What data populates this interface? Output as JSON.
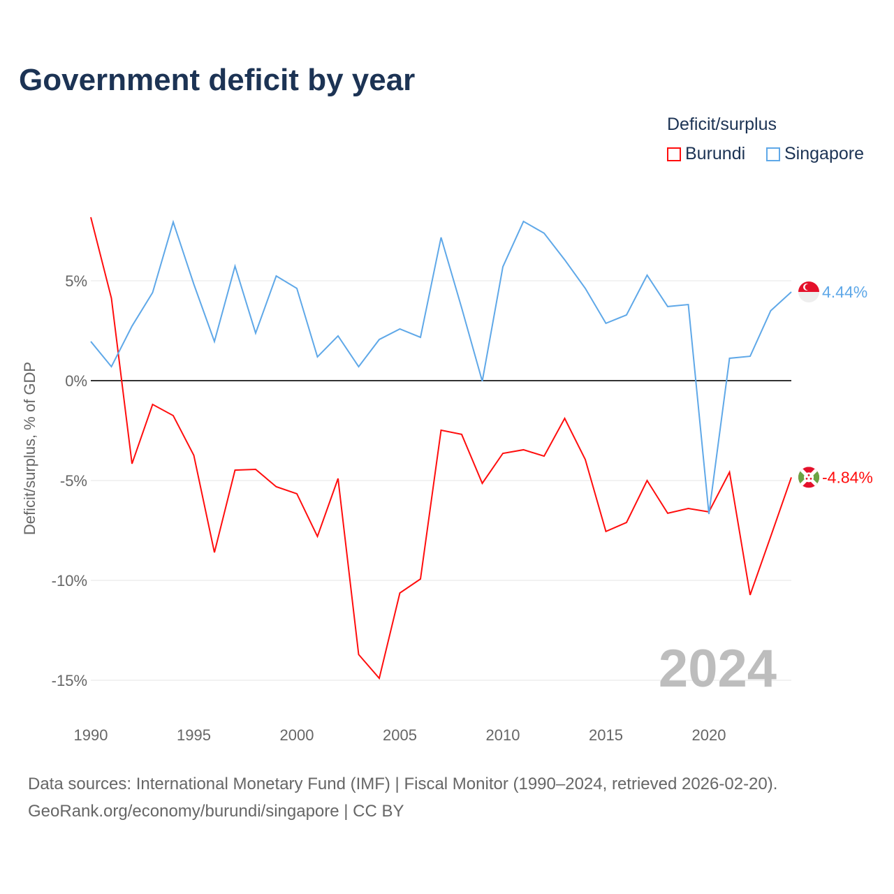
{
  "title": "Government deficit by year",
  "legend": {
    "title": "Deficit/surplus",
    "items": [
      {
        "name": "Burundi",
        "color": "#ff0d0d"
      },
      {
        "name": "Singapore",
        "color": "#5fa8e8"
      }
    ]
  },
  "year_watermark": "2024",
  "footer": {
    "line1": "Data sources: International Monetary Fund (IMF) | Fiscal Monitor (1990–2024, retrieved 2026-02-20).",
    "line2": "GeoRank.org/economy/burundi/singapore | CC BY"
  },
  "chart_data": {
    "type": "line",
    "title": "Government deficit by year",
    "ylabel": "Deficit/surplus, % of GDP",
    "xlabel": "",
    "xlim": [
      1990,
      2024
    ],
    "ylim": [
      -16.5,
      9
    ],
    "x_ticks": [
      1990,
      1995,
      2000,
      2005,
      2010,
      2015,
      2020
    ],
    "y_ticks": [
      {
        "v": 5,
        "label": "5%"
      },
      {
        "v": 0,
        "label": "0%"
      },
      {
        "v": -5,
        "label": "-5%"
      },
      {
        "v": -10,
        "label": "-10%"
      },
      {
        "v": -15,
        "label": "-15%"
      }
    ],
    "x": [
      1990,
      1991,
      1992,
      1993,
      1994,
      1995,
      1996,
      1997,
      1998,
      1999,
      2000,
      2001,
      2002,
      2003,
      2004,
      2005,
      2006,
      2007,
      2008,
      2009,
      2010,
      2011,
      2012,
      2013,
      2014,
      2015,
      2016,
      2017,
      2018,
      2019,
      2020,
      2021,
      2022,
      2023,
      2024
    ],
    "series": [
      {
        "name": "Burundi",
        "color": "#ff0d0d",
        "end_label": "-4.84%",
        "values": [
          8.18,
          4.13,
          -4.16,
          -1.19,
          -1.75,
          -3.74,
          -8.6,
          -4.48,
          -4.44,
          -5.31,
          -5.66,
          -7.8,
          -4.9,
          -13.71,
          -14.9,
          -10.63,
          -9.93,
          -2.48,
          -2.69,
          -5.14,
          -3.64,
          -3.46,
          -3.78,
          -1.89,
          -3.95,
          -7.55,
          -7.1,
          -5.0,
          -6.64,
          -6.4,
          -6.57,
          -4.58,
          -10.73,
          -7.8,
          -4.84
        ]
      },
      {
        "name": "Singapore",
        "color": "#5fa8e8",
        "end_label": "4.44%",
        "values": [
          1.96,
          0.7,
          2.73,
          4.41,
          7.94,
          4.83,
          1.96,
          5.73,
          2.38,
          5.24,
          4.62,
          1.19,
          2.24,
          0.7,
          2.06,
          2.59,
          2.17,
          7.17,
          3.64,
          -0.03,
          5.7,
          7.97,
          7.38,
          6.05,
          4.62,
          2.87,
          3.29,
          5.28,
          3.71,
          3.81,
          -6.68,
          1.12,
          1.22,
          3.5,
          4.44
        ]
      }
    ]
  }
}
